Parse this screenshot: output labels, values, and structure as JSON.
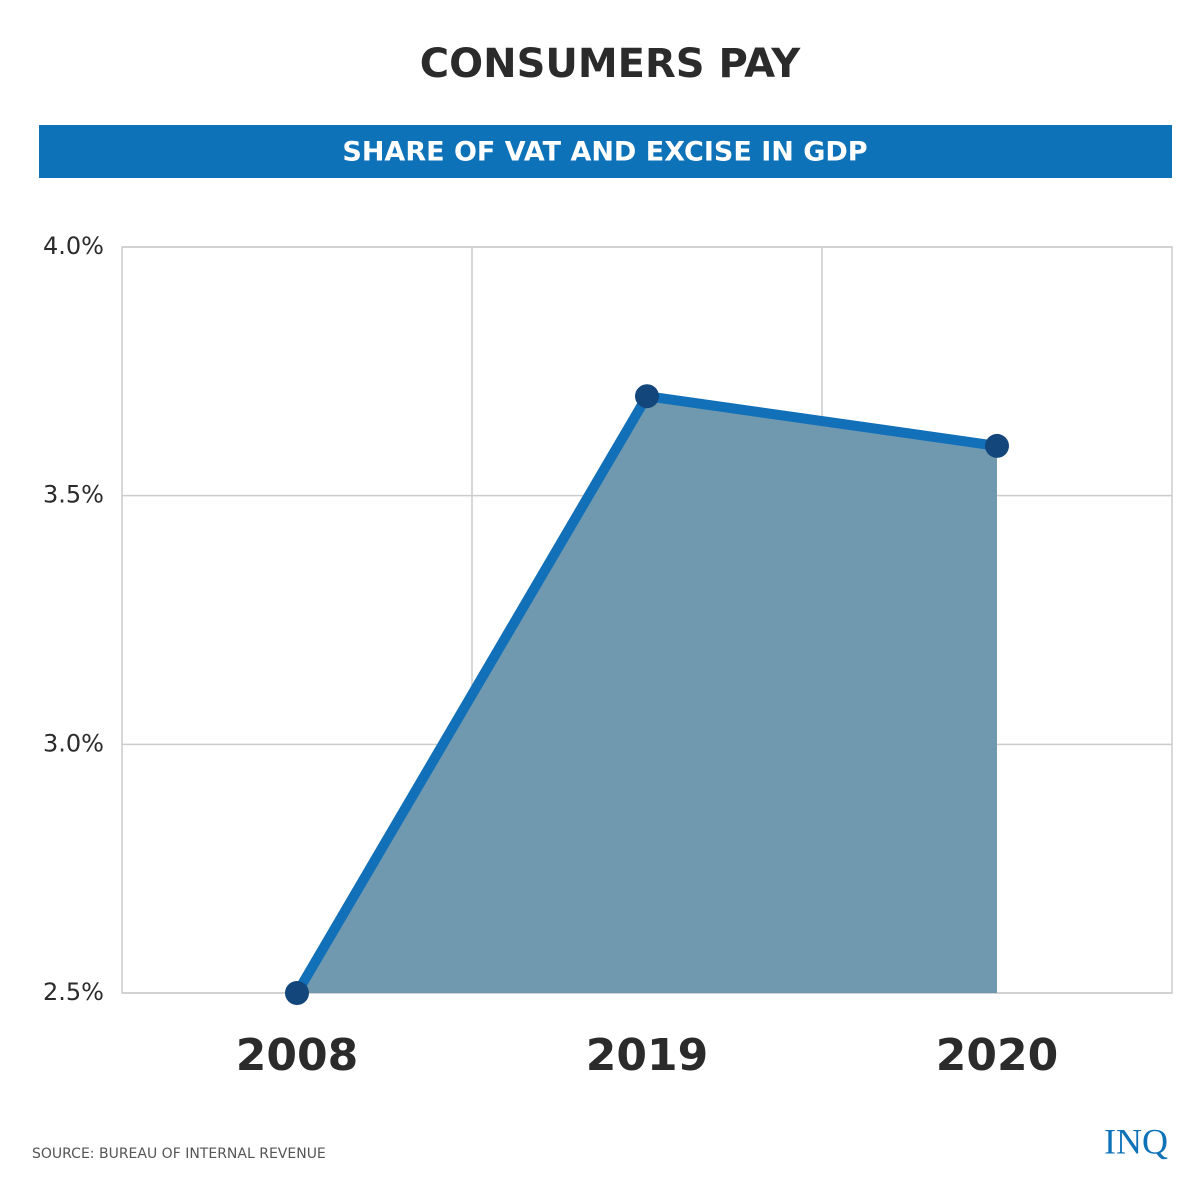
{
  "chart_data": {
    "type": "area",
    "title": "CONSUMERS PAY",
    "subtitle": "SHARE OF VAT AND EXCISE IN GDP",
    "categories": [
      "2008",
      "2019",
      "2020"
    ],
    "series": [
      {
        "name": "Share of VAT and excise in GDP",
        "values": [
          2.5,
          3.7,
          3.6
        ],
        "color": "#1170b8",
        "fill": "#7099b0",
        "marker_color": "#13467a"
      }
    ],
    "ylim": [
      2.5,
      4.0
    ],
    "yticks": [
      {
        "value": 2.5,
        "label": "2.5%"
      },
      {
        "value": 3.0,
        "label": "3.0%"
      },
      {
        "value": 3.5,
        "label": "3.5%"
      },
      {
        "value": 4.0,
        "label": "4.0%"
      }
    ],
    "grid": true,
    "source": "SOURCE: BUREAU OF INTERNAL REVENUE",
    "logo": "INQ"
  }
}
